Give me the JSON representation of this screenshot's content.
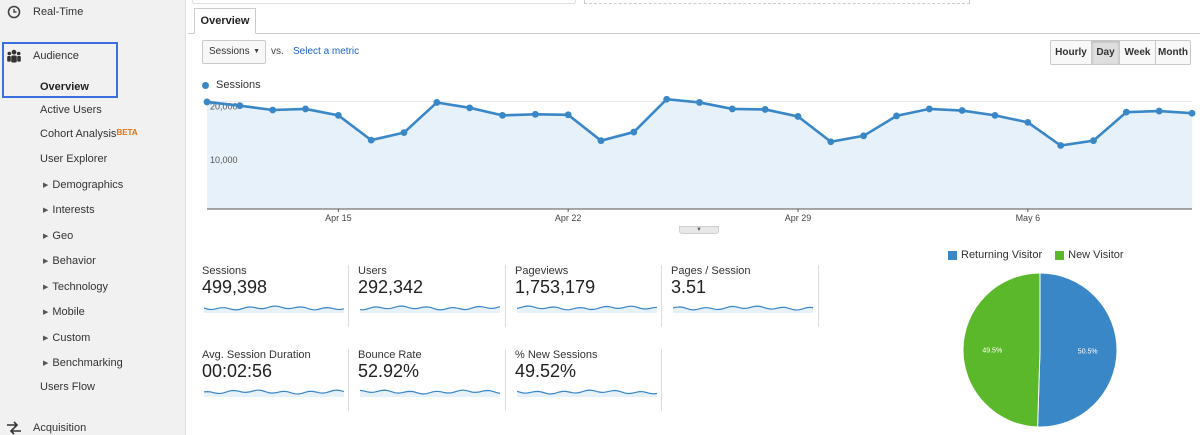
{
  "sidebar": {
    "realtime": "Real-Time",
    "audience": "Audience",
    "acquisition": "Acquisition",
    "sub_items": [
      {
        "label": "Overview",
        "active": true
      },
      {
        "label": "Active Users"
      },
      {
        "label": "Cohort Analysis",
        "badge": "BETA"
      },
      {
        "label": "User Explorer"
      }
    ],
    "expandable": [
      "Demographics",
      "Interests",
      "Geo",
      "Behavior",
      "Technology",
      "Mobile",
      "Custom",
      "Benchmarking"
    ],
    "users_flow": "Users Flow"
  },
  "tabs": {
    "overview": "Overview"
  },
  "controls": {
    "metric": "Sessions",
    "vs": "vs.",
    "select_metric": "Select a metric",
    "time_buttons": [
      "Hourly",
      "Day",
      "Week",
      "Month"
    ],
    "active_time": "Day"
  },
  "chart_data": {
    "type": "line",
    "legend": "Sessions",
    "color": "#3a87c8",
    "fill": "#e6f1fa",
    "y_ticks": [
      {
        "label": "20,000",
        "value": 20000
      },
      {
        "label": "10,000",
        "value": 10000
      }
    ],
    "ylim": [
      0,
      21000
    ],
    "x_ticks": [
      {
        "label": "Apr 15",
        "index": 4
      },
      {
        "label": "Apr 22",
        "index": 11
      },
      {
        "label": "Apr 29",
        "index": 18
      },
      {
        "label": "May 6",
        "index": 25
      }
    ],
    "values": [
      19900,
      19200,
      18400,
      18600,
      17400,
      12800,
      14200,
      19800,
      18800,
      17400,
      17600,
      17500,
      12700,
      14300,
      20400,
      19800,
      18600,
      18500,
      17200,
      12500,
      13600,
      17300,
      18600,
      18300,
      17400,
      16100,
      11800,
      12700,
      18000,
      18200,
      17800
    ]
  },
  "metrics": [
    {
      "label": "Sessions",
      "value": "499,398"
    },
    {
      "label": "Users",
      "value": "292,342"
    },
    {
      "label": "Pageviews",
      "value": "1,753,179"
    },
    {
      "label": "Pages / Session",
      "value": "3.51"
    },
    {
      "label": "Avg. Session Duration",
      "value": "00:02:56"
    },
    {
      "label": "Bounce Rate",
      "value": "52.92%"
    },
    {
      "label": "% New Sessions",
      "value": "49.52%"
    }
  ],
  "pie": {
    "slices": [
      {
        "label": "Returning Visitor",
        "value": 50.5,
        "display": "50.5%",
        "color": "#3a87c8"
      },
      {
        "label": "New Visitor",
        "value": 49.5,
        "display": "49.5%",
        "color": "#5cb82b"
      }
    ]
  }
}
